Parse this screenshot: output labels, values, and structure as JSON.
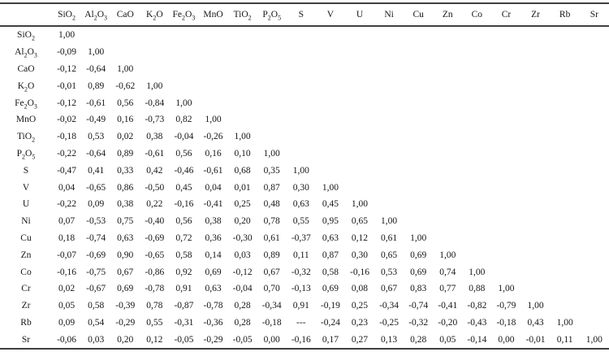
{
  "chart_data": {
    "type": "table",
    "description": "Lower-triangular correlation matrix of major oxides and trace elements",
    "decimal_separator": ",",
    "corner_label": "",
    "columns": [
      "SiO2",
      "Al2O3",
      "CaO",
      "K2O",
      "Fe2O3",
      "MnO",
      "TiO2",
      "P2O5",
      "S",
      "V",
      "U",
      "Ni",
      "Cu",
      "Zn",
      "Co",
      "Cr",
      "Zr",
      "Rb",
      "Sr"
    ],
    "rows": [
      {
        "label": "SiO2",
        "values": [
          "1,00"
        ]
      },
      {
        "label": "Al2O3",
        "values": [
          "-0,09",
          "1,00"
        ]
      },
      {
        "label": "CaO",
        "values": [
          "-0,12",
          "-0,64",
          "1,00"
        ]
      },
      {
        "label": "K2O",
        "values": [
          "-0,01",
          "0,89",
          "-0,62",
          "1,00"
        ]
      },
      {
        "label": "Fe2O3",
        "values": [
          "-0,12",
          "-0,61",
          "0,56",
          "-0,84",
          "1,00"
        ]
      },
      {
        "label": "MnO",
        "values": [
          "-0,02",
          "-0,49",
          "0,16",
          "-0,73",
          "0,82",
          "1,00"
        ]
      },
      {
        "label": "TiO2",
        "values": [
          "-0,18",
          "0,53",
          "0,02",
          "0,38",
          "-0,04",
          "-0,26",
          "1,00"
        ]
      },
      {
        "label": "P2O5",
        "values": [
          "-0,22",
          "-0,64",
          "0,89",
          "-0,61",
          "0,56",
          "0,16",
          "0,10",
          "1,00"
        ]
      },
      {
        "label": "S",
        "values": [
          "-0,47",
          "0,41",
          "0,33",
          "0,42",
          "-0,46",
          "-0,61",
          "0,68",
          "0,35",
          "1,00"
        ]
      },
      {
        "label": "V",
        "values": [
          "0,04",
          "-0,65",
          "0,86",
          "-0,50",
          "0,45",
          "0,04",
          "0,01",
          "0,87",
          "0,30",
          "1,00"
        ]
      },
      {
        "label": "U",
        "values": [
          "-0,22",
          "0,09",
          "0,38",
          "0,22",
          "-0,16",
          "-0,41",
          "0,25",
          "0,48",
          "0,63",
          "0,45",
          "1,00"
        ]
      },
      {
        "label": "Ni",
        "values": [
          "0,07",
          "-0,53",
          "0,75",
          "-0,40",
          "0,56",
          "0,38",
          "0,20",
          "0,78",
          "0,55",
          "0,95",
          "0,65",
          "1,00"
        ]
      },
      {
        "label": "Cu",
        "values": [
          "0,18",
          "-0,74",
          "0,63",
          "-0,69",
          "0,72",
          "0,36",
          "-0,30",
          "0,61",
          "-0,37",
          "0,63",
          "0,12",
          "0,61",
          "1,00"
        ]
      },
      {
        "label": "Zn",
        "values": [
          "-0,07",
          "-0,69",
          "0,90",
          "-0,65",
          "0,58",
          "0,14",
          "0,03",
          "0,89",
          "0,11",
          "0,87",
          "0,30",
          "0,65",
          "0,69",
          "1,00"
        ]
      },
      {
        "label": "Co",
        "values": [
          "-0,16",
          "-0,75",
          "0,67",
          "-0,86",
          "0,92",
          "0,69",
          "-0,12",
          "0,67",
          "-0,32",
          "0,58",
          "-0,16",
          "0,53",
          "0,69",
          "0,74",
          "1,00"
        ]
      },
      {
        "label": "Cr",
        "values": [
          "0,02",
          "-0,67",
          "0,69",
          "-0,78",
          "0,91",
          "0,63",
          "-0,04",
          "0,70",
          "-0,13",
          "0,69",
          "0,08",
          "0,67",
          "0,83",
          "0,77",
          "0,88",
          "1,00"
        ]
      },
      {
        "label": "Zr",
        "values": [
          "0,05",
          "0,58",
          "-0,39",
          "0,78",
          "-0,87",
          "-0,78",
          "0,28",
          "-0,34",
          "0,91",
          "-0,19",
          "0,25",
          "-0,34",
          "-0,74",
          "-0,41",
          "-0,82",
          "-0,79",
          "1,00"
        ]
      },
      {
        "label": "Rb",
        "values": [
          "0,09",
          "0,54",
          "-0,29",
          "0,55",
          "-0,31",
          "-0,36",
          "0,28",
          "-0,18",
          "---",
          "-0,24",
          "0,23",
          "-0,25",
          "-0,32",
          "-0,20",
          "-0,43",
          "-0,18",
          "0,43",
          "1,00"
        ]
      },
      {
        "label": "Sr",
        "values": [
          "-0,06",
          "0,03",
          "0,20",
          "0,12",
          "-0,05",
          "-0,29",
          "-0,05",
          "0,00",
          "-0,16",
          "0,17",
          "0,27",
          "0,13",
          "0,28",
          "0,05",
          "-0,14",
          "0,00",
          "-0,01",
          "0,11",
          "1,00"
        ]
      }
    ]
  }
}
